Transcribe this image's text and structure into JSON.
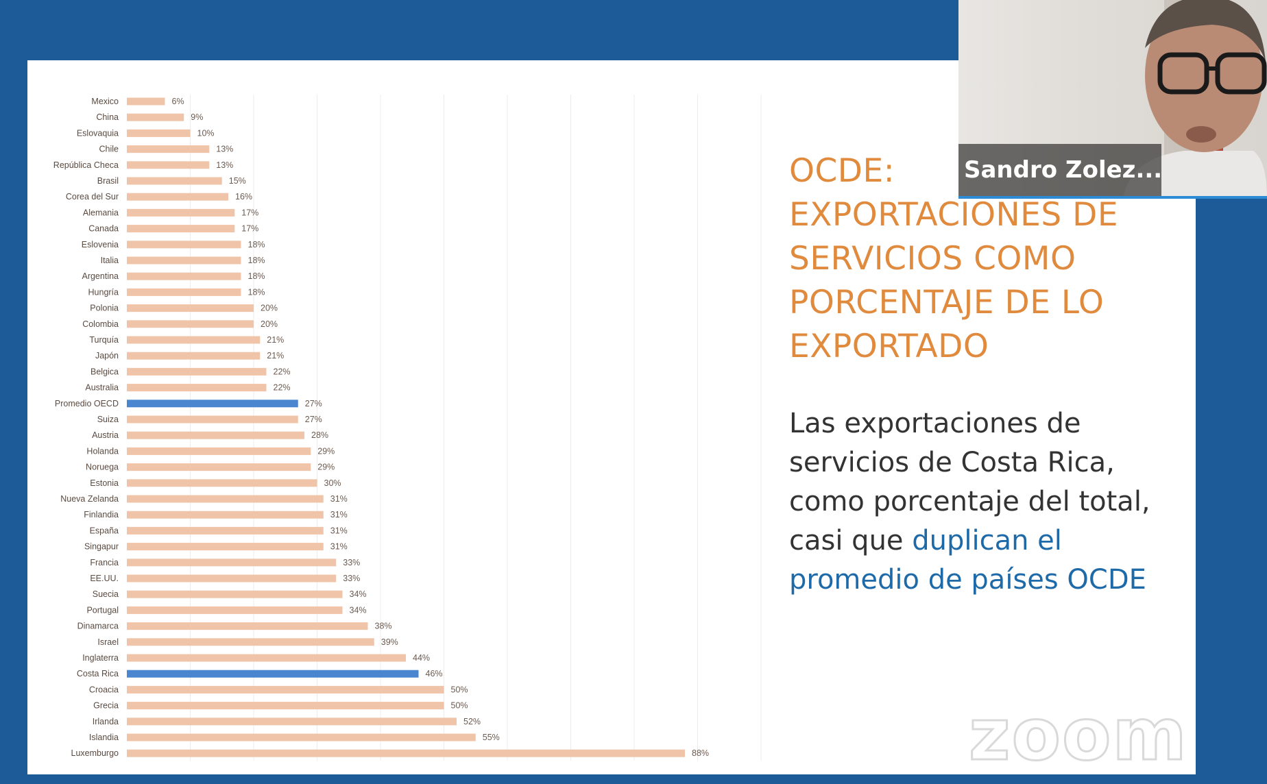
{
  "slide": {
    "title_lines": [
      "OCDE:",
      "EXPORTACIONES DE",
      "SERVICIOS COMO",
      "PORCENTAJE DE LO",
      "EXPORTADO"
    ],
    "body_text": "Las exportaciones de servicios de Costa Rica, como porcentaje del total, casi que",
    "body_highlight": "duplican el promedio de países OCDE",
    "title_color": "#e08a3e",
    "highlight_color": "#1e6aa8"
  },
  "watermark": "zoom",
  "video": {
    "participant_name": "Sandro Zolez...",
    "active_speaker_border": "#2d8bd6"
  },
  "chart_data": {
    "type": "bar",
    "orientation": "horizontal",
    "xlim": [
      0,
      100
    ],
    "grid": true,
    "legend": "none",
    "bar_color": "#f0c4a8",
    "highlight_color": "#4a86d0",
    "highlighted": [
      "Promedio OECD",
      "Costa Rica"
    ],
    "categories": [
      "Mexico",
      "China",
      "Eslovaquia",
      "Chile",
      "República Checa",
      "Brasil",
      "Corea del Sur",
      "Alemania",
      "Canada",
      "Eslovenia",
      "Italia",
      "Argentina",
      "Hungría",
      "Polonia",
      "Colombia",
      "Turquía",
      "Japón",
      "Belgica",
      "Australia",
      "Promedio OECD",
      "Suiza",
      "Austria",
      "Holanda",
      "Noruega",
      "Estonia",
      "Nueva Zelanda",
      "Finlandia",
      "España",
      "Singapur",
      "Francia",
      "EE.UU.",
      "Suecia",
      "Portugal",
      "Dinamarca",
      "Israel",
      "Inglaterra",
      "Costa Rica",
      "Croacia",
      "Grecia",
      "Irlanda",
      "Islandia",
      "Luxemburgo"
    ],
    "values": [
      6,
      9,
      10,
      13,
      13,
      15,
      16,
      17,
      17,
      18,
      18,
      18,
      18,
      20,
      20,
      21,
      21,
      22,
      22,
      27,
      27,
      28,
      29,
      29,
      30,
      31,
      31,
      31,
      31,
      33,
      33,
      34,
      34,
      38,
      39,
      44,
      46,
      50,
      50,
      52,
      55,
      88
    ],
    "value_labels": [
      "6%",
      "9%",
      "10%",
      "13%",
      "13%",
      "15%",
      "16%",
      "17%",
      "17%",
      "18%",
      "18%",
      "18%",
      "18%",
      "20%",
      "20%",
      "21%",
      "21%",
      "22%",
      "22%",
      "27%",
      "27%",
      "28%",
      "29%",
      "29%",
      "30%",
      "31%",
      "31%",
      "31%",
      "31%",
      "33%",
      "33%",
      "34%",
      "34%",
      "38%",
      "39%",
      "44%",
      "46%",
      "50%",
      "50%",
      "52%",
      "55%",
      "88%"
    ]
  }
}
